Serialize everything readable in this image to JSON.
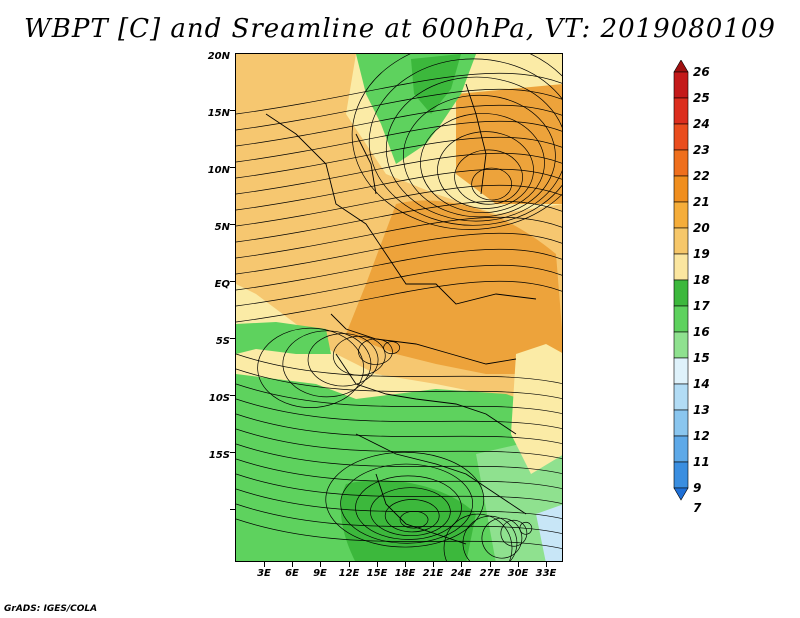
{
  "title": "WBPT [C] and Sreamline at 600hPa, VT: 2019080109",
  "footer": "GrADS: IGES/COLA",
  "map": {
    "lat_labels": [
      "20N",
      "15N",
      "10N",
      "5N",
      "EQ",
      "5S",
      "10S",
      "15S"
    ],
    "lon_labels": [
      "3E",
      "6E",
      "9E",
      "12E",
      "15E",
      "18E",
      "21E",
      "24E",
      "27E",
      "30E",
      "33E"
    ],
    "fill_colors": {
      "deep_green": "#3cb83c",
      "green": "#5ed25e",
      "light_green": "#8fe18f",
      "pale_yellow": "#fbeba6",
      "light_orange": "#f6c770",
      "orange": "#eda33b",
      "pale_blue": "#c8e6f7"
    }
  },
  "colorbar": {
    "labels": [
      "26",
      "25",
      "24",
      "23",
      "22",
      "21",
      "20",
      "19",
      "18",
      "17",
      "16",
      "15",
      "14",
      "13",
      "12",
      "11",
      "9",
      "7"
    ],
    "colors": [
      "#a01010",
      "#c41a1a",
      "#dc2e1e",
      "#ea4d1e",
      "#ef6f1d",
      "#f08e1e",
      "#f5ad3a",
      "#f6c76a",
      "#fbe6a0",
      "#3cb83c",
      "#5ed25e",
      "#8fe18f",
      "#dff2fb",
      "#b2dcf5",
      "#8ac6ef",
      "#5ea9e8",
      "#3a8ee0",
      "#1e6fd6"
    ]
  }
}
